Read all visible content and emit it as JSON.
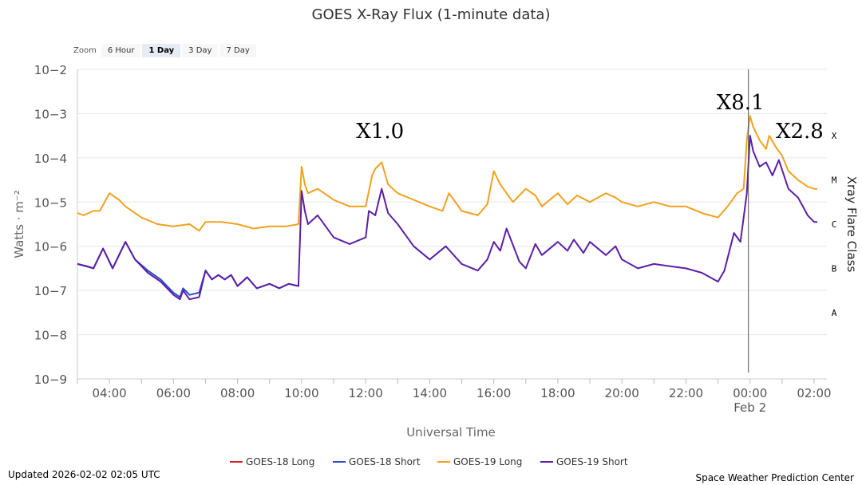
{
  "zoom": {
    "label": "Zoom",
    "buttons": [
      "6 Hour",
      "1 Day",
      "3 Day",
      "7 Day"
    ],
    "active": "1 Day"
  },
  "footer": {
    "updated": "Updated 2026-02-02 02:05 UTC",
    "credit": "Space Weather Prediction Center"
  },
  "chart_data": {
    "type": "line",
    "title": "GOES X-Ray Flux (1-minute data)",
    "xlabel": "Universal Time",
    "ylabel": "Watts · m⁻²",
    "y2label": "Xray Flare Class",
    "yscale": "log",
    "xlim": [
      3.0,
      26.4
    ],
    "ylim_exp": [
      -9,
      -2
    ],
    "ytick_labels": [
      "10−2",
      "10−3",
      "10−4",
      "10−5",
      "10−6",
      "10−7",
      "10−8",
      "10−9"
    ],
    "xticks": [
      {
        "x": 4,
        "label": "04:00"
      },
      {
        "x": 6,
        "label": "06:00"
      },
      {
        "x": 8,
        "label": "08:00"
      },
      {
        "x": 10,
        "label": "10:00"
      },
      {
        "x": 12,
        "label": "12:00"
      },
      {
        "x": 14,
        "label": "14:00"
      },
      {
        "x": 16,
        "label": "16:00"
      },
      {
        "x": 18,
        "label": "18:00"
      },
      {
        "x": 20,
        "label": "20:00"
      },
      {
        "x": 22,
        "label": "22:00"
      },
      {
        "x": 24,
        "label": "00:00"
      },
      {
        "x": 26,
        "label": "02:00"
      }
    ],
    "date_label": {
      "x": 24,
      "label": "Feb 2"
    },
    "flare_classes": [
      {
        "label": "X",
        "exp": -3.5
      },
      {
        "label": "M",
        "exp": -4.5
      },
      {
        "label": "C",
        "exp": -5.5
      },
      {
        "label": "B",
        "exp": -6.5
      },
      {
        "label": "A",
        "exp": -7.5
      }
    ],
    "grid": true,
    "vline_x": 23.95,
    "annotations": [
      {
        "text": "X1.0",
        "x": 12.45,
        "exp": -3.55
      },
      {
        "text": "X8.1",
        "x": 23.7,
        "exp": -2.9
      },
      {
        "text": "X2.8",
        "x": 25.55,
        "exp": -3.55
      }
    ],
    "legend": {
      "position": "bottom"
    },
    "colors": {
      "GOES-18 Long": "#d9232d",
      "GOES-18 Short": "#2b4fc7",
      "GOES-19 Long": "#f0a21e",
      "GOES-19 Short": "#5b1fa8"
    },
    "series": [
      {
        "name": "GOES-18 Long",
        "x": [],
        "y_exp": []
      },
      {
        "name": "GOES-18 Short",
        "x": [
          3.0,
          3.5,
          3.8,
          4.1,
          4.5,
          4.8,
          5.2,
          5.6,
          6.0,
          6.2,
          6.3,
          6.5,
          6.8,
          7.0,
          7.2,
          7.4,
          7.6,
          7.8,
          8.0,
          8.3,
          8.6,
          9.0,
          9.3,
          9.6,
          9.9
        ],
        "y_exp": [
          -6.4,
          -6.5,
          -6.05,
          -6.5,
          -5.9,
          -6.3,
          -6.55,
          -6.75,
          -7.05,
          -7.15,
          -6.95,
          -7.1,
          -7.05,
          -6.55,
          -6.75,
          -6.65,
          -6.75,
          -6.65,
          -6.9,
          -6.7,
          -6.95,
          -6.85,
          -6.95,
          -6.85,
          -6.9
        ]
      },
      {
        "name": "GOES-19 Long",
        "x": [
          3.0,
          3.2,
          3.5,
          3.7,
          4.0,
          4.3,
          4.5,
          5.0,
          5.5,
          6.0,
          6.5,
          6.8,
          7.0,
          7.5,
          8.0,
          8.5,
          9.0,
          9.5,
          9.9,
          10.0,
          10.1,
          10.2,
          10.5,
          11.0,
          11.5,
          12.0,
          12.2,
          12.3,
          12.5,
          12.7,
          13.0,
          13.5,
          14.0,
          14.4,
          14.6,
          15.0,
          15.5,
          15.8,
          16.0,
          16.2,
          16.6,
          17.0,
          17.3,
          17.5,
          18.0,
          18.3,
          18.6,
          19.0,
          19.5,
          19.8,
          20.0,
          20.5,
          21.0,
          21.5,
          22.0,
          22.5,
          23.0,
          23.3,
          23.6,
          23.8,
          23.9,
          24.0,
          24.1,
          24.3,
          24.5,
          24.6,
          24.8,
          25.0,
          25.2,
          25.5,
          25.8,
          26.0,
          26.1
        ],
        "y_exp": [
          -5.25,
          -5.3,
          -5.2,
          -5.2,
          -4.8,
          -4.95,
          -5.1,
          -5.35,
          -5.5,
          -5.55,
          -5.5,
          -5.65,
          -5.45,
          -5.45,
          -5.5,
          -5.6,
          -5.55,
          -5.55,
          -5.5,
          -4.2,
          -4.6,
          -4.8,
          -4.7,
          -4.95,
          -5.1,
          -5.1,
          -4.4,
          -4.25,
          -4.1,
          -4.6,
          -4.8,
          -4.95,
          -5.1,
          -5.2,
          -4.8,
          -5.2,
          -5.3,
          -5.05,
          -4.3,
          -4.6,
          -5.0,
          -4.7,
          -4.85,
          -5.1,
          -4.8,
          -5.05,
          -4.85,
          -5.0,
          -4.8,
          -4.9,
          -5.0,
          -5.1,
          -5.0,
          -5.1,
          -5.1,
          -5.25,
          -5.35,
          -5.1,
          -4.8,
          -4.7,
          -3.6,
          -3.05,
          -3.3,
          -3.6,
          -3.8,
          -3.5,
          -3.75,
          -3.95,
          -4.3,
          -4.5,
          -4.65,
          -4.7,
          -4.7
        ]
      },
      {
        "name": "GOES-19 Short",
        "x": [
          3.0,
          3.3,
          3.5,
          3.8,
          4.1,
          4.5,
          4.8,
          5.2,
          5.6,
          6.0,
          6.2,
          6.3,
          6.5,
          6.8,
          7.0,
          7.2,
          7.4,
          7.6,
          7.8,
          8.0,
          8.3,
          8.6,
          9.0,
          9.3,
          9.6,
          9.9,
          10.0,
          10.1,
          10.2,
          10.5,
          11.0,
          11.5,
          12.0,
          12.1,
          12.3,
          12.5,
          12.7,
          13.0,
          13.5,
          14.0,
          14.5,
          15.0,
          15.5,
          15.8,
          16.0,
          16.2,
          16.4,
          16.8,
          17.0,
          17.3,
          17.5,
          18.0,
          18.3,
          18.5,
          18.8,
          19.0,
          19.5,
          19.8,
          20.0,
          20.5,
          21.0,
          21.5,
          22.0,
          22.5,
          23.0,
          23.2,
          23.5,
          23.7,
          23.9,
          24.0,
          24.1,
          24.3,
          24.5,
          24.7,
          24.9,
          25.2,
          25.5,
          25.8,
          26.0,
          26.1
        ],
        "y_exp": [
          -6.4,
          -6.45,
          -6.5,
          -6.05,
          -6.5,
          -5.9,
          -6.3,
          -6.6,
          -6.8,
          -7.1,
          -7.2,
          -7.0,
          -7.2,
          -7.15,
          -6.55,
          -6.75,
          -6.65,
          -6.75,
          -6.65,
          -6.9,
          -6.7,
          -6.95,
          -6.85,
          -6.95,
          -6.85,
          -6.9,
          -4.75,
          -5.2,
          -5.5,
          -5.3,
          -5.8,
          -5.95,
          -5.8,
          -5.2,
          -5.3,
          -4.7,
          -5.25,
          -5.5,
          -6.0,
          -6.3,
          -6.0,
          -6.4,
          -6.55,
          -6.3,
          -5.9,
          -6.1,
          -5.6,
          -6.35,
          -6.5,
          -5.95,
          -6.2,
          -5.9,
          -6.1,
          -5.85,
          -6.15,
          -5.9,
          -6.2,
          -6.0,
          -6.3,
          -6.5,
          -6.4,
          -6.45,
          -6.5,
          -6.6,
          -6.8,
          -6.55,
          -5.7,
          -5.9,
          -4.8,
          -3.5,
          -3.85,
          -4.2,
          -4.1,
          -4.4,
          -4.05,
          -4.7,
          -4.9,
          -5.3,
          -5.45,
          -5.45
        ]
      }
    ]
  }
}
